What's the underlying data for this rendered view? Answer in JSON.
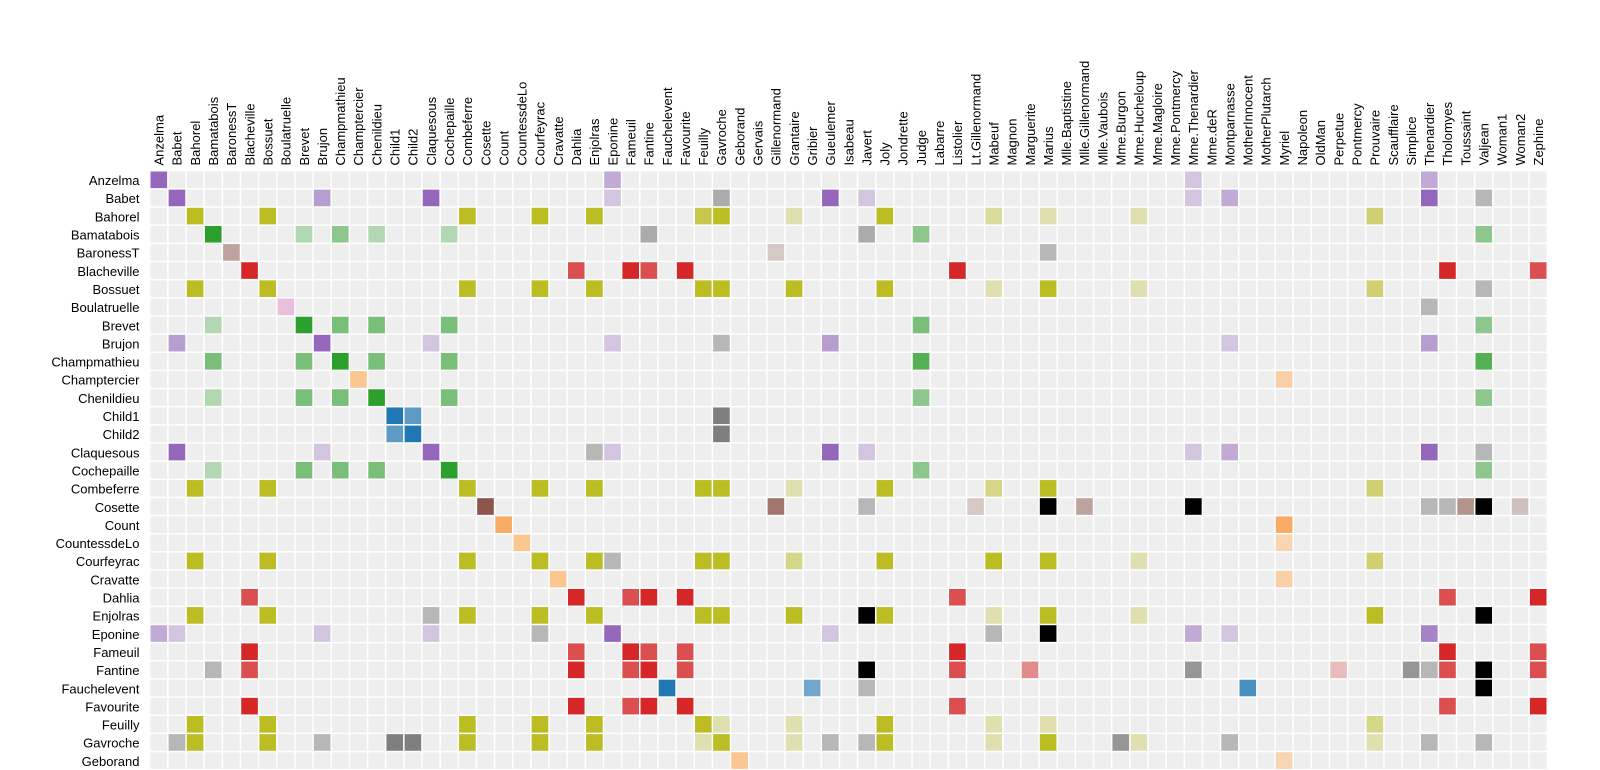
{
  "palette": [
    "#9467bd",
    "#bcbd22",
    "#2ca02c",
    "#8c564b",
    "#d62728",
    "#e377c2",
    "#ff7f0e",
    "#ffbb78",
    "#1f77b4",
    "#7f7f7f",
    "#000000",
    "#aec7e8",
    "#98df8a",
    "#c5b0d5",
    "#c49c94",
    "#f7b6d2",
    "#c7c7c7",
    "#dbdb8d",
    "#9edae5",
    "#17becf"
  ],
  "chart_data": {
    "type": "heatmap",
    "columns": [
      "Anzelma",
      "Babet",
      "Bahorel",
      "Bamatabois",
      "BaronessT",
      "Blacheville",
      "Bossuet",
      "Boulatruelle",
      "Brevet",
      "Brujon",
      "Champmathieu",
      "Champtercier",
      "Chenildieu",
      "Child1",
      "Child2",
      "Claquesous",
      "Cochepaille",
      "Combeferre",
      "Cosette",
      "Count",
      "CountessdeLo",
      "Courfeyrac",
      "Cravatte",
      "Dahlia",
      "Enjolras",
      "Eponine",
      "Fameuil",
      "Fantine",
      "Fauchelevent",
      "Favourite",
      "Feuilly",
      "Gavroche",
      "Geborand",
      "Gervais",
      "Gillenormand",
      "Grantaire",
      "Gribier",
      "Gueulemer",
      "Isabeau",
      "Javert",
      "Joly",
      "Jondrette",
      "Judge",
      "Labarre",
      "Listolier",
      "Lt.Gillenormand",
      "Mabeuf",
      "Magnon",
      "Marguerite",
      "Marius",
      "Mlle.Baptistine",
      "Mlle.Gillenormand",
      "Mlle.Vaubois",
      "Mme.Burgon",
      "Mme.Hucheloup",
      "Mme.Magloire",
      "Mme.Pontmercy",
      "Mme.Thenardier",
      "Mme.deR",
      "Montparnasse",
      "MotherInnocent",
      "MotherPlutarch",
      "Myriel",
      "Napoleon",
      "OldMan",
      "Perpetue",
      "Pontmercy",
      "Prouvaire",
      "Scaufflaire",
      "Simplice",
      "Thenardier",
      "Tholomyes",
      "Toussaint",
      "Valjean",
      "Woman1",
      "Woman2",
      "Zephine"
    ],
    "rows": [
      "Anzelma",
      "Babet",
      "Bahorel",
      "Bamatabois",
      "BaronessT",
      "Blacheville",
      "Bossuet",
      "Boulatruelle",
      "Brevet",
      "Brujon",
      "Champmathieu",
      "Champtercier",
      "Chenildieu",
      "Child1",
      "Child2",
      "Claquesous",
      "Cochepaille",
      "Combeferre",
      "Cosette",
      "Count",
      "CountessdeLo",
      "Courfeyrac",
      "Cravatte",
      "Dahlia",
      "Enjolras",
      "Eponine",
      "Fameuil",
      "Fantine",
      "Fauchelevent",
      "Favourite",
      "Feuilly",
      "Gavroche",
      "Geborand"
    ],
    "cells": [
      [
        0,
        0,
        0,
        1
      ],
      [
        0,
        25,
        0,
        0.5
      ],
      [
        0,
        57,
        0,
        0.3
      ],
      [
        0,
        70,
        0,
        0.5
      ],
      [
        1,
        1,
        0,
        1
      ],
      [
        1,
        9,
        0,
        0.6
      ],
      [
        1,
        15,
        0,
        1
      ],
      [
        1,
        25,
        0,
        0.3
      ],
      [
        1,
        31,
        9,
        0.6
      ],
      [
        1,
        37,
        0,
        1
      ],
      [
        1,
        39,
        0,
        0.3
      ],
      [
        1,
        57,
        0,
        0.3
      ],
      [
        1,
        59,
        0,
        0.5
      ],
      [
        1,
        70,
        0,
        1
      ],
      [
        1,
        73,
        9,
        0.5
      ],
      [
        2,
        2,
        1,
        1
      ],
      [
        2,
        6,
        1,
        1
      ],
      [
        2,
        17,
        1,
        1
      ],
      [
        2,
        21,
        1,
        1
      ],
      [
        2,
        24,
        1,
        1
      ],
      [
        2,
        30,
        1,
        0.8
      ],
      [
        2,
        31,
        1,
        1
      ],
      [
        2,
        35,
        1,
        0.3
      ],
      [
        2,
        40,
        1,
        1
      ],
      [
        2,
        46,
        1,
        0.4
      ],
      [
        2,
        49,
        1,
        0.3
      ],
      [
        2,
        54,
        1,
        0.3
      ],
      [
        2,
        67,
        1,
        0.6
      ],
      [
        3,
        3,
        2,
        1
      ],
      [
        3,
        8,
        2,
        0.3
      ],
      [
        3,
        10,
        2,
        0.5
      ],
      [
        3,
        12,
        2,
        0.3
      ],
      [
        3,
        16,
        2,
        0.3
      ],
      [
        3,
        27,
        9,
        0.6
      ],
      [
        3,
        39,
        9,
        0.6
      ],
      [
        3,
        42,
        2,
        0.5
      ],
      [
        3,
        73,
        2,
        0.5
      ],
      [
        4,
        4,
        3,
        0.5
      ],
      [
        4,
        34,
        3,
        0.25
      ],
      [
        4,
        49,
        9,
        0.5
      ],
      [
        5,
        5,
        4,
        1
      ],
      [
        5,
        23,
        4,
        0.8
      ],
      [
        5,
        26,
        4,
        1
      ],
      [
        5,
        27,
        4,
        0.8
      ],
      [
        5,
        29,
        4,
        1
      ],
      [
        5,
        44,
        4,
        1
      ],
      [
        5,
        71,
        4,
        1
      ],
      [
        5,
        76,
        4,
        0.8
      ],
      [
        6,
        2,
        1,
        1
      ],
      [
        6,
        6,
        1,
        1
      ],
      [
        6,
        17,
        1,
        1
      ],
      [
        6,
        21,
        1,
        1
      ],
      [
        6,
        24,
        1,
        1
      ],
      [
        6,
        30,
        1,
        1
      ],
      [
        6,
        31,
        1,
        1
      ],
      [
        6,
        35,
        1,
        1
      ],
      [
        6,
        40,
        1,
        1
      ],
      [
        6,
        46,
        1,
        0.3
      ],
      [
        6,
        49,
        1,
        1
      ],
      [
        6,
        54,
        1,
        0.3
      ],
      [
        6,
        67,
        1,
        0.6
      ],
      [
        6,
        73,
        9,
        0.5
      ],
      [
        7,
        7,
        5,
        0.4
      ],
      [
        7,
        70,
        9,
        0.5
      ],
      [
        8,
        3,
        2,
        0.3
      ],
      [
        8,
        8,
        2,
        1
      ],
      [
        8,
        10,
        2,
        0.6
      ],
      [
        8,
        12,
        2,
        0.6
      ],
      [
        8,
        16,
        2,
        0.6
      ],
      [
        8,
        42,
        2,
        0.6
      ],
      [
        8,
        73,
        2,
        0.5
      ],
      [
        9,
        1,
        0,
        0.6
      ],
      [
        9,
        9,
        0,
        1
      ],
      [
        9,
        15,
        0,
        0.3
      ],
      [
        9,
        25,
        0,
        0.3
      ],
      [
        9,
        31,
        9,
        0.5
      ],
      [
        9,
        37,
        0,
        0.6
      ],
      [
        9,
        59,
        0,
        0.3
      ],
      [
        9,
        70,
        0,
        0.6
      ],
      [
        10,
        3,
        2,
        0.6
      ],
      [
        10,
        8,
        2,
        0.6
      ],
      [
        10,
        10,
        2,
        1
      ],
      [
        10,
        12,
        2,
        0.6
      ],
      [
        10,
        16,
        2,
        0.6
      ],
      [
        10,
        42,
        2,
        0.8
      ],
      [
        10,
        73,
        2,
        0.8
      ],
      [
        11,
        11,
        7,
        0.8
      ],
      [
        11,
        62,
        7,
        0.6
      ],
      [
        12,
        3,
        2,
        0.3
      ],
      [
        12,
        8,
        2,
        0.6
      ],
      [
        12,
        10,
        2,
        0.6
      ],
      [
        12,
        12,
        2,
        1
      ],
      [
        12,
        16,
        2,
        0.6
      ],
      [
        12,
        42,
        2,
        0.5
      ],
      [
        12,
        73,
        2,
        0.5
      ],
      [
        13,
        13,
        8,
        1
      ],
      [
        13,
        14,
        8,
        0.7
      ],
      [
        13,
        31,
        9,
        1
      ],
      [
        14,
        13,
        8,
        0.7
      ],
      [
        14,
        14,
        8,
        1
      ],
      [
        14,
        31,
        9,
        1
      ],
      [
        15,
        1,
        0,
        1
      ],
      [
        15,
        9,
        0,
        0.3
      ],
      [
        15,
        15,
        0,
        1
      ],
      [
        15,
        24,
        9,
        0.5
      ],
      [
        15,
        25,
        0,
        0.3
      ],
      [
        15,
        37,
        0,
        1
      ],
      [
        15,
        39,
        0,
        0.3
      ],
      [
        15,
        57,
        0,
        0.3
      ],
      [
        15,
        59,
        0,
        0.5
      ],
      [
        15,
        70,
        0,
        1
      ],
      [
        15,
        73,
        9,
        0.5
      ],
      [
        16,
        3,
        2,
        0.3
      ],
      [
        16,
        8,
        2,
        0.6
      ],
      [
        16,
        10,
        2,
        0.6
      ],
      [
        16,
        12,
        2,
        0.6
      ],
      [
        16,
        16,
        2,
        1
      ],
      [
        16,
        42,
        2,
        0.5
      ],
      [
        16,
        73,
        2,
        0.5
      ],
      [
        17,
        2,
        1,
        1
      ],
      [
        17,
        6,
        1,
        1
      ],
      [
        17,
        17,
        1,
        1
      ],
      [
        17,
        21,
        1,
        1
      ],
      [
        17,
        24,
        1,
        1
      ],
      [
        17,
        30,
        1,
        1
      ],
      [
        17,
        31,
        1,
        1
      ],
      [
        17,
        35,
        1,
        0.3
      ],
      [
        17,
        40,
        1,
        1
      ],
      [
        17,
        46,
        1,
        0.5
      ],
      [
        17,
        49,
        1,
        1
      ],
      [
        17,
        67,
        1,
        0.6
      ],
      [
        18,
        18,
        3,
        1
      ],
      [
        18,
        34,
        3,
        0.8
      ],
      [
        18,
        39,
        9,
        0.5
      ],
      [
        18,
        45,
        3,
        0.25
      ],
      [
        18,
        49,
        10,
        1
      ],
      [
        18,
        51,
        3,
        0.5
      ],
      [
        18,
        57,
        10,
        1
      ],
      [
        18,
        70,
        9,
        0.5
      ],
      [
        18,
        71,
        9,
        0.5
      ],
      [
        18,
        72,
        3,
        0.6
      ],
      [
        18,
        73,
        10,
        1
      ],
      [
        18,
        75,
        3,
        0.3
      ],
      [
        19,
        19,
        6,
        0.6
      ],
      [
        19,
        62,
        6,
        0.6
      ],
      [
        20,
        20,
        7,
        0.8
      ],
      [
        20,
        62,
        7,
        0.5
      ],
      [
        21,
        2,
        1,
        1
      ],
      [
        21,
        6,
        1,
        1
      ],
      [
        21,
        17,
        1,
        1
      ],
      [
        21,
        21,
        1,
        1
      ],
      [
        21,
        24,
        1,
        1
      ],
      [
        21,
        25,
        9,
        0.5
      ],
      [
        21,
        30,
        1,
        1
      ],
      [
        21,
        31,
        1,
        1
      ],
      [
        21,
        35,
        1,
        0.5
      ],
      [
        21,
        40,
        1,
        1
      ],
      [
        21,
        46,
        1,
        1
      ],
      [
        21,
        49,
        1,
        1
      ],
      [
        21,
        54,
        1,
        0.3
      ],
      [
        21,
        67,
        1,
        0.6
      ],
      [
        22,
        22,
        7,
        0.8
      ],
      [
        22,
        62,
        7,
        0.6
      ],
      [
        23,
        5,
        4,
        0.8
      ],
      [
        23,
        23,
        4,
        1
      ],
      [
        23,
        26,
        4,
        0.8
      ],
      [
        23,
        27,
        4,
        1
      ],
      [
        23,
        29,
        4,
        1
      ],
      [
        23,
        44,
        4,
        0.8
      ],
      [
        23,
        71,
        4,
        0.8
      ],
      [
        23,
        76,
        4,
        1
      ],
      [
        24,
        2,
        1,
        1
      ],
      [
        24,
        6,
        1,
        1
      ],
      [
        24,
        15,
        9,
        0.5
      ],
      [
        24,
        17,
        1,
        1
      ],
      [
        24,
        21,
        1,
        1
      ],
      [
        24,
        24,
        1,
        1
      ],
      [
        24,
        30,
        1,
        1
      ],
      [
        24,
        31,
        1,
        1
      ],
      [
        24,
        35,
        1,
        1
      ],
      [
        24,
        39,
        10,
        1
      ],
      [
        24,
        40,
        1,
        1
      ],
      [
        24,
        46,
        1,
        0.3
      ],
      [
        24,
        49,
        1,
        1
      ],
      [
        24,
        54,
        1,
        0.3
      ],
      [
        24,
        67,
        1,
        1
      ],
      [
        24,
        73,
        10,
        1
      ],
      [
        25,
        0,
        0,
        0.5
      ],
      [
        25,
        1,
        0,
        0.3
      ],
      [
        25,
        9,
        0,
        0.3
      ],
      [
        25,
        15,
        0,
        0.3
      ],
      [
        25,
        21,
        9,
        0.5
      ],
      [
        25,
        25,
        0,
        1
      ],
      [
        25,
        37,
        0,
        0.3
      ],
      [
        25,
        46,
        9,
        0.5
      ],
      [
        25,
        49,
        10,
        1
      ],
      [
        25,
        57,
        0,
        0.5
      ],
      [
        25,
        59,
        0,
        0.3
      ],
      [
        25,
        70,
        0,
        0.8
      ],
      [
        26,
        5,
        4,
        1
      ],
      [
        26,
        23,
        4,
        0.8
      ],
      [
        26,
        26,
        4,
        1
      ],
      [
        26,
        27,
        4,
        0.8
      ],
      [
        26,
        29,
        4,
        0.8
      ],
      [
        26,
        44,
        4,
        1
      ],
      [
        26,
        71,
        4,
        1
      ],
      [
        26,
        76,
        4,
        0.8
      ],
      [
        27,
        3,
        9,
        0.5
      ],
      [
        27,
        5,
        4,
        0.8
      ],
      [
        27,
        23,
        4,
        1
      ],
      [
        27,
        26,
        4,
        0.8
      ],
      [
        27,
        27,
        4,
        1
      ],
      [
        27,
        29,
        4,
        0.8
      ],
      [
        27,
        39,
        10,
        1
      ],
      [
        27,
        44,
        4,
        0.8
      ],
      [
        27,
        48,
        4,
        0.5
      ],
      [
        27,
        57,
        9,
        0.8
      ],
      [
        27,
        65,
        4,
        0.25
      ],
      [
        27,
        69,
        9,
        0.8
      ],
      [
        27,
        70,
        9,
        0.5
      ],
      [
        27,
        71,
        4,
        0.8
      ],
      [
        27,
        73,
        10,
        1
      ],
      [
        27,
        76,
        4,
        0.8
      ],
      [
        28,
        28,
        8,
        1
      ],
      [
        28,
        36,
        8,
        0.6
      ],
      [
        28,
        39,
        9,
        0.5
      ],
      [
        28,
        60,
        8,
        0.8
      ],
      [
        28,
        73,
        10,
        1
      ],
      [
        29,
        5,
        4,
        1
      ],
      [
        29,
        23,
        4,
        1
      ],
      [
        29,
        26,
        4,
        0.8
      ],
      [
        29,
        27,
        4,
        1
      ],
      [
        29,
        29,
        4,
        1
      ],
      [
        29,
        44,
        4,
        0.8
      ],
      [
        29,
        71,
        4,
        0.8
      ],
      [
        29,
        76,
        4,
        1
      ],
      [
        30,
        2,
        1,
        1
      ],
      [
        30,
        6,
        1,
        1
      ],
      [
        30,
        17,
        1,
        1
      ],
      [
        30,
        21,
        1,
        1
      ],
      [
        30,
        24,
        1,
        1
      ],
      [
        30,
        30,
        1,
        1
      ],
      [
        30,
        31,
        1,
        0.3
      ],
      [
        30,
        35,
        1,
        0.3
      ],
      [
        30,
        40,
        1,
        1
      ],
      [
        30,
        46,
        1,
        0.3
      ],
      [
        30,
        49,
        1,
        0.3
      ],
      [
        30,
        67,
        1,
        0.5
      ],
      [
        31,
        1,
        9,
        0.5
      ],
      [
        31,
        2,
        1,
        1
      ],
      [
        31,
        6,
        1,
        1
      ],
      [
        31,
        9,
        9,
        0.5
      ],
      [
        31,
        13,
        9,
        1
      ],
      [
        31,
        14,
        9,
        1
      ],
      [
        31,
        17,
        1,
        1
      ],
      [
        31,
        21,
        1,
        1
      ],
      [
        31,
        24,
        1,
        1
      ],
      [
        31,
        30,
        1,
        0.3
      ],
      [
        31,
        31,
        1,
        1
      ],
      [
        31,
        35,
        1,
        0.3
      ],
      [
        31,
        37,
        9,
        0.5
      ],
      [
        31,
        39,
        9,
        0.5
      ],
      [
        31,
        40,
        1,
        1
      ],
      [
        31,
        46,
        1,
        0.3
      ],
      [
        31,
        49,
        1,
        1
      ],
      [
        31,
        53,
        9,
        0.8
      ],
      [
        31,
        54,
        1,
        0.3
      ],
      [
        31,
        59,
        9,
        0.5
      ],
      [
        31,
        67,
        1,
        0.3
      ],
      [
        31,
        70,
        9,
        0.5
      ],
      [
        31,
        73,
        9,
        0.5
      ],
      [
        32,
        32,
        7,
        0.8
      ],
      [
        32,
        62,
        7,
        0.5
      ]
    ]
  }
}
